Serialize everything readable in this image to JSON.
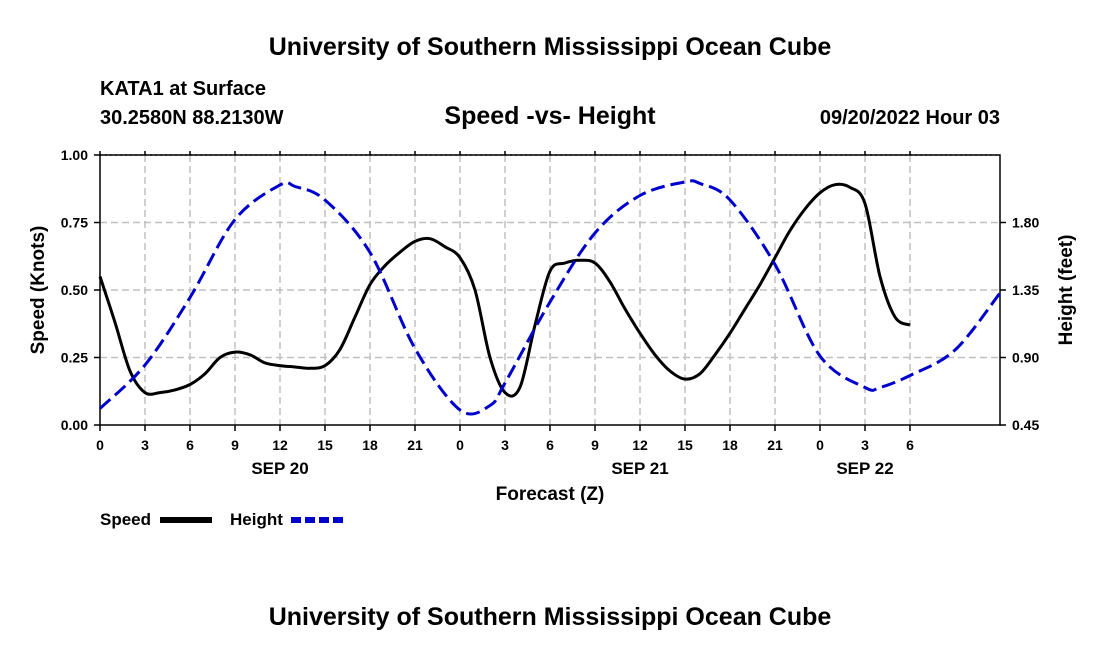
{
  "header": {
    "title": "University of Southern Mississippi Ocean Cube",
    "station": "KATA1 at Surface",
    "coords": "30.2580N  88.2130W",
    "chart_title": "Speed -vs- Height",
    "timestamp": "09/20/2022 Hour 03",
    "footer_title": "University of Southern Mississippi Ocean Cube"
  },
  "colors": {
    "speed": "#000000",
    "height": "#0000cc",
    "grid": "#c0c0c0"
  },
  "chart_data": {
    "type": "line",
    "title": "Speed -vs- Height",
    "xlabel": "Forecast (Z)",
    "ylabel_left": "Speed (Knots)",
    "ylabel_right": "Height (feet)",
    "x_range_hours": [
      0,
      60
    ],
    "ylim_left": [
      0,
      1
    ],
    "ylim_right": [
      0.45,
      2.25
    ],
    "x_ticks": [
      {
        "hour": 0,
        "label": "0"
      },
      {
        "hour": 3,
        "label": "3"
      },
      {
        "hour": 6,
        "label": "6"
      },
      {
        "hour": 9,
        "label": "9"
      },
      {
        "hour": 12,
        "label": "12"
      },
      {
        "hour": 15,
        "label": "15"
      },
      {
        "hour": 18,
        "label": "18"
      },
      {
        "hour": 21,
        "label": "21"
      },
      {
        "hour": 24,
        "label": "0"
      },
      {
        "hour": 27,
        "label": "3"
      },
      {
        "hour": 30,
        "label": "6"
      },
      {
        "hour": 33,
        "label": "9"
      },
      {
        "hour": 36,
        "label": "12"
      },
      {
        "hour": 39,
        "label": "15"
      },
      {
        "hour": 42,
        "label": "18"
      },
      {
        "hour": 45,
        "label": "21"
      },
      {
        "hour": 48,
        "label": "0"
      },
      {
        "hour": 51,
        "label": "3"
      },
      {
        "hour": 54,
        "label": "6"
      }
    ],
    "date_labels": [
      {
        "hour": 12,
        "label": "SEP 20"
      },
      {
        "hour": 36,
        "label": "SEP 21"
      },
      {
        "hour": 51,
        "label": "SEP 22"
      }
    ],
    "y_ticks_left": [
      {
        "value": 0,
        "label": "0.00"
      },
      {
        "value": 0.25,
        "label": "0.25"
      },
      {
        "value": 0.5,
        "label": "0.50"
      },
      {
        "value": 0.75,
        "label": "0.75"
      },
      {
        "value": 1.0,
        "label": "1.00"
      }
    ],
    "y_ticks_right": [
      {
        "value": 0.45,
        "label": "0.45"
      },
      {
        "value": 0.9,
        "label": "0.90"
      },
      {
        "value": 1.35,
        "label": "1.35"
      },
      {
        "value": 1.8,
        "label": "1.80"
      }
    ],
    "series": [
      {
        "name": "Speed",
        "axis": "left",
        "style": "solid",
        "x": [
          0,
          1,
          2,
          3,
          4,
          5,
          6,
          7,
          8,
          9,
          10,
          11,
          12,
          13,
          14,
          15,
          16,
          17,
          18,
          19,
          20,
          21,
          22,
          23,
          24,
          25,
          26,
          27,
          28,
          29,
          30,
          31,
          32,
          33,
          34,
          35,
          36,
          37,
          38,
          39,
          40,
          41,
          42,
          43,
          44,
          45,
          46,
          47,
          48,
          49,
          50,
          51,
          52,
          53,
          54
        ],
        "values": [
          0.55,
          0.38,
          0.2,
          0.12,
          0.12,
          0.13,
          0.15,
          0.19,
          0.25,
          0.27,
          0.26,
          0.23,
          0.22,
          0.215,
          0.21,
          0.22,
          0.28,
          0.4,
          0.52,
          0.59,
          0.64,
          0.68,
          0.69,
          0.66,
          0.62,
          0.5,
          0.25,
          0.12,
          0.14,
          0.37,
          0.57,
          0.6,
          0.61,
          0.6,
          0.53,
          0.43,
          0.34,
          0.26,
          0.2,
          0.17,
          0.19,
          0.26,
          0.34,
          0.43,
          0.52,
          0.62,
          0.72,
          0.8,
          0.86,
          0.89,
          0.88,
          0.82,
          0.55,
          0.4,
          0.37
        ]
      },
      {
        "name": "Height",
        "axis": "right",
        "style": "dashed",
        "x": [
          0,
          3,
          6,
          9,
          12,
          13,
          15,
          18,
          21,
          24,
          26,
          27,
          30,
          33,
          36,
          39,
          40,
          42,
          45,
          48,
          51,
          52,
          54,
          57,
          60
        ],
        "values": [
          0.56,
          0.85,
          1.3,
          1.82,
          2.05,
          2.04,
          1.95,
          1.6,
          0.96,
          0.55,
          0.58,
          0.73,
          1.27,
          1.73,
          1.98,
          2.07,
          2.06,
          1.95,
          1.52,
          0.91,
          0.7,
          0.7,
          0.78,
          0.95,
          1.33
        ]
      }
    ],
    "legend": [
      {
        "name": "Speed",
        "style": "solid"
      },
      {
        "name": "Height",
        "style": "dashed"
      }
    ],
    "grid": true
  }
}
